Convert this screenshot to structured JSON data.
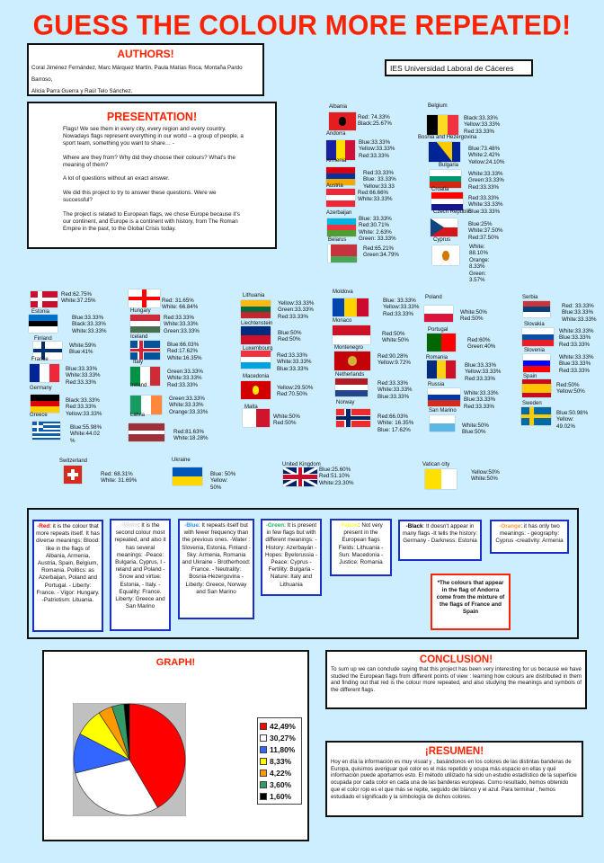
{
  "title": "GUESS THE COLOUR MORE REPEATED!",
  "authors": {
    "heading": "AUTHORS!",
    "lines": [
      "Coral Jiménez Fernández, Marc Márquez Martín, Paula Matías Roca, Montaña Pardo Barroso,",
      "Alicia Parra Guerra y Raúl Telo Sánchez."
    ]
  },
  "school": "IES Universidad Laboral de Cáceres",
  "presentation": {
    "heading": "PRESENTATION!",
    "paragraphs": [
      "Flags! We see them in every city, every region and every country. Nowadays flags represent everything in our world – a group of people, a sport team, something you want to share… -",
      "Where are they from?  Why did they choose their colours? What's the meaning of them?",
      "A lot of questions without an exact answer.",
      "We did this project to try to answer these questions. Were  we successful?",
      "The project is related to European flags, we chose Europe because it's our continent, and Europe is a continent with history, from The Roman Empire in the past, to the Global Crisis today."
    ]
  },
  "countries": [
    {
      "name": "Albania",
      "lines": [
        "Red: 74.33%",
        "Black:25.67%"
      ],
      "flag": {
        "type": "emblem",
        "colors": [
          "#e41e20",
          "#000000"
        ]
      }
    },
    {
      "name": "Andorra",
      "lines": [
        "Blue:33.33%",
        "Yellow:33.33%",
        "Red:33.33%"
      ],
      "flag": {
        "type": "v",
        "colors": [
          "#1a21a0",
          "#fedf00",
          "#d0103a"
        ]
      }
    },
    {
      "name": "Armenia",
      "lines": [
        "Red:33.33%",
        "Blue: 33.33%",
        "Yellow:33.33"
      ],
      "flag": {
        "type": "h",
        "colors": [
          "#d90012",
          "#0033a0",
          "#f2a800"
        ]
      }
    },
    {
      "name": "Austria",
      "lines": [
        "Red:66.66%",
        "White:33.33%"
      ],
      "flag": {
        "type": "h",
        "colors": [
          "#ed2939",
          "#ffffff",
          "#ed2939"
        ]
      }
    },
    {
      "name": "Azerbaijan",
      "lines": [
        "Blue: 33.33%",
        "Red:30.71%",
        "White: 2.63%",
        "Green: 33.33%"
      ],
      "flag": {
        "type": "h",
        "colors": [
          "#00b5e2",
          "#ef3340",
          "#509e2f"
        ]
      }
    },
    {
      "name": "Belarus",
      "lines": [
        "Red:65.21%",
        "Green:34.79%"
      ],
      "flag": {
        "type": "h2",
        "colors": [
          "#c8313e",
          "#4aa657"
        ]
      }
    },
    {
      "name": "Belgium",
      "lines": [
        "Black:33.33%",
        "Yellow:33.33%",
        "Red:33.33%"
      ],
      "flag": {
        "type": "v",
        "colors": [
          "#000000",
          "#fdda24",
          "#ef3340"
        ]
      }
    },
    {
      "name": "Bosnia and Hezergovina",
      "lines": [
        "Blue:73.48%",
        "White:2.42%",
        "Yellow:24.10%"
      ],
      "flag": {
        "type": "bosnia",
        "colors": [
          "#002395",
          "#fecb00"
        ]
      }
    },
    {
      "name": "Bulgaria",
      "lines": [
        "White:33.33%",
        "Green:33.33%",
        "Red:33.33%"
      ],
      "flag": {
        "type": "h",
        "colors": [
          "#ffffff",
          "#00966e",
          "#d62612"
        ]
      }
    },
    {
      "name": "Croatia",
      "lines": [
        "Red:33.33%",
        "White:33.33%",
        "Blue:33.33%"
      ],
      "flag": {
        "type": "h",
        "colors": [
          "#ff0000",
          "#ffffff",
          "#171796"
        ]
      }
    },
    {
      "name": "Czech Republic",
      "lines": [
        "Blue:25%",
        "White:37.50%",
        "Red:37.50%"
      ],
      "flag": {
        "type": "czech",
        "colors": [
          "#ffffff",
          "#d7141a",
          "#11457e"
        ]
      }
    },
    {
      "name": "Cyprus",
      "lines": [
        "White:",
        "88.10%",
        "Orange:",
        "8.33%",
        "Green:",
        "3.57%"
      ],
      "flag": {
        "type": "emblem",
        "colors": [
          "#ffffff",
          "#d57800"
        ]
      }
    },
    {
      "name": "",
      "lines": [
        "Red:62.75%",
        "White:37.25%"
      ],
      "flag": {
        "type": "nordic",
        "colors": [
          "#c8102e",
          "#ffffff"
        ]
      }
    },
    {
      "name": "Estonia",
      "lines": [
        "Blue:33.33%",
        "Black:33.33%",
        "White:33.33%"
      ],
      "flag": {
        "type": "h",
        "colors": [
          "#0072ce",
          "#000000",
          "#ffffff"
        ]
      }
    },
    {
      "name": "Finland",
      "lines": [
        "White:59%",
        "Blue:41%"
      ],
      "flag": {
        "type": "nordic",
        "colors": [
          "#ffffff",
          "#002f6c"
        ]
      }
    },
    {
      "name": "France",
      "lines": [
        "Blue:33.33%",
        "White:33.33%",
        "Red:33.33%"
      ],
      "flag": {
        "type": "v",
        "colors": [
          "#002395",
          "#ffffff",
          "#ed2939"
        ]
      }
    },
    {
      "name": "Germany",
      "lines": [
        "Black:33.33%",
        "Red:33.33%",
        "Yellow:33.33%"
      ],
      "flag": {
        "type": "h",
        "colors": [
          "#000000",
          "#dd0000",
          "#ffce00"
        ]
      }
    },
    {
      "name": "Greece",
      "lines": [
        "Blue:55.98%",
        "White:44.02",
        "%"
      ],
      "flag": {
        "type": "greece",
        "colors": [
          "#0d5eaf",
          "#ffffff"
        ]
      }
    },
    {
      "name": "",
      "lines": [
        "Red: 31.65%",
        "White: 66.84%"
      ],
      "flag": {
        "type": "cross",
        "colors": [
          "#ffffff",
          "#ff0000"
        ]
      }
    },
    {
      "name": "Hungary",
      "lines": [
        "Red:33.33%",
        "White:33.33%",
        "Green:33.33%"
      ],
      "flag": {
        "type": "h",
        "colors": [
          "#ce2939",
          "#ffffff",
          "#477050"
        ]
      }
    },
    {
      "name": "Iceland",
      "lines": [
        "Blue:66.03%",
        "Red:17.62%",
        "White:16.35%"
      ],
      "flag": {
        "type": "nordic2",
        "colors": [
          "#02529c",
          "#ffffff",
          "#dc1e35"
        ]
      }
    },
    {
      "name": "Italy",
      "lines": [
        "Green:33.33%",
        "White:33.33%",
        "Red:33.33%"
      ],
      "flag": {
        "type": "v",
        "colors": [
          "#009246",
          "#ffffff",
          "#ce2b37"
        ]
      }
    },
    {
      "name": "Ireland",
      "lines": [
        "Green:33.33%",
        "White:33.33%",
        "Orange:33.33%"
      ],
      "flag": {
        "type": "v",
        "colors": [
          "#169b62",
          "#ffffff",
          "#ff883e"
        ]
      }
    },
    {
      "name": "Latvia",
      "lines": [
        "Red:81.63%",
        "White:18.28%"
      ],
      "flag": {
        "type": "latvia",
        "colors": [
          "#9e3039",
          "#ffffff"
        ]
      }
    },
    {
      "name": "Lithuania",
      "lines": [
        "Yellow:33.33%",
        "Green:33.33%",
        "Red:33.33%"
      ],
      "flag": {
        "type": "h",
        "colors": [
          "#fdb913",
          "#006a44",
          "#c1272d"
        ]
      }
    },
    {
      "name": "Liechtenstein",
      "lines": [
        "Blue:50%",
        "Red:50%"
      ],
      "flag": {
        "type": "h",
        "colors": [
          "#002b7f",
          "#ce1126"
        ]
      }
    },
    {
      "name": "Luxembourg",
      "lines": [
        "Red:33.33%",
        "White:33.33%",
        "Blue:33.33%"
      ],
      "flag": {
        "type": "h",
        "colors": [
          "#ef3340",
          "#ffffff",
          "#00a3e0"
        ]
      }
    },
    {
      "name": "Macedonia",
      "lines": [
        "Yellow:29.50%",
        "Red:70.50%"
      ],
      "flag": {
        "type": "emblem",
        "colors": [
          "#d20000",
          "#ffe600"
        ]
      }
    },
    {
      "name": "Malta",
      "lines": [
        "White:50%",
        "Red:50%"
      ],
      "flag": {
        "type": "v2",
        "colors": [
          "#ffffff",
          "#cf142b"
        ]
      }
    },
    {
      "name": "Moldova",
      "lines": [
        "Blue: 33.33%",
        "Yellow:33.33%",
        "Red:33.33%"
      ],
      "flag": {
        "type": "v",
        "colors": [
          "#0046ae",
          "#ffd200",
          "#cc092f"
        ]
      }
    },
    {
      "name": "Monaco",
      "lines": [
        "Red:50%",
        "White:50%"
      ],
      "flag": {
        "type": "h",
        "colors": [
          "#ce1126",
          "#ffffff"
        ]
      }
    },
    {
      "name": "Montenegro",
      "lines": [
        "Red:90.28%",
        "Yellow:9.72%"
      ],
      "flag": {
        "type": "emblem",
        "colors": [
          "#c40308",
          "#d4af3a"
        ]
      }
    },
    {
      "name": "Netherlands",
      "lines": [
        "Red:33.33%",
        "White:33.33%",
        "Blue:33.33%"
      ],
      "flag": {
        "type": "h",
        "colors": [
          "#ae1c28",
          "#ffffff",
          "#21468b"
        ]
      }
    },
    {
      "name": "Norway",
      "lines": [
        "Red:66.03%",
        "White: 16.35%",
        "Blue: 17.62%"
      ],
      "flag": {
        "type": "nordic2",
        "colors": [
          "#ef2b2d",
          "#ffffff",
          "#002868"
        ]
      }
    },
    {
      "name": "Poland",
      "lines": [
        "White:50%",
        "Red:50%"
      ],
      "flag": {
        "type": "h",
        "colors": [
          "#ffffff",
          "#dc143c"
        ]
      }
    },
    {
      "name": "Portugal",
      "lines": [
        "Red:60%",
        "Green:40%"
      ],
      "flag": {
        "type": "v2",
        "colors": [
          "#006600",
          "#ff0000"
        ]
      }
    },
    {
      "name": "Romania",
      "lines": [
        "Blue:33.33%",
        "Yellow:33.33%",
        "Red:33.33%"
      ],
      "flag": {
        "type": "v",
        "colors": [
          "#002b7f",
          "#fcd116",
          "#ce1126"
        ]
      }
    },
    {
      "name": "Russia",
      "lines": [
        "White:33.33%",
        "Blue:33.33%",
        "Red:33.33%"
      ],
      "flag": {
        "type": "h",
        "colors": [
          "#ffffff",
          "#0039a6",
          "#d52b1e"
        ]
      }
    },
    {
      "name": "San Marino",
      "lines": [
        "White:50%",
        "Blue:50%"
      ],
      "flag": {
        "type": "h",
        "colors": [
          "#ffffff",
          "#5eb6e4"
        ]
      }
    },
    {
      "name": "Serbia",
      "lines": [
        "Red: 33.33%",
        "Blue:33.33%",
        "White:33.33%"
      ],
      "flag": {
        "type": "h",
        "colors": [
          "#c6363c",
          "#0c4076",
          "#ffffff"
        ]
      }
    },
    {
      "name": "Slovakia",
      "lines": [
        "White:33.33%",
        "Blue:33.33%",
        "Red:33.33%"
      ],
      "flag": {
        "type": "h",
        "colors": [
          "#ffffff",
          "#0b4ea2",
          "#ee1c25"
        ]
      }
    },
    {
      "name": "Slovenia",
      "lines": [
        "White:33.33%",
        "Blue:33.33%",
        "Red:33.33%"
      ],
      "flag": {
        "type": "h",
        "colors": [
          "#ffffff",
          "#0000ff",
          "#ff0000"
        ]
      }
    },
    {
      "name": "Spain",
      "lines": [
        "Red:50%",
        "Yellow:50%"
      ],
      "flag": {
        "type": "spain",
        "colors": [
          "#c60b1e",
          "#ffc400"
        ]
      }
    },
    {
      "name": "Sweden",
      "lines": [
        "Blue:50.98%",
        "Yellow:",
        "49.02%"
      ],
      "flag": {
        "type": "nordic",
        "colors": [
          "#006aa7",
          "#fecc00"
        ]
      }
    },
    {
      "name": "Switzerland",
      "lines": [
        "Red: 68.31%",
        "White: 31.69%"
      ],
      "flag": {
        "type": "swiss",
        "colors": [
          "#d52b1e",
          "#ffffff"
        ]
      }
    },
    {
      "name": "Ukraine",
      "lines": [
        "Blue: 50%",
        "Yellow:",
        "50%"
      ],
      "flag": {
        "type": "h",
        "colors": [
          "#0057b7",
          "#ffd700"
        ]
      }
    },
    {
      "name": "United Kingdom",
      "lines": [
        "Blue:25.60%",
        "Red:51.10%",
        "White:23.30%"
      ],
      "flag": {
        "type": "uk",
        "colors": [
          "#012169",
          "#ffffff",
          "#c8102e"
        ]
      }
    },
    {
      "name": "Vatican city",
      "lines": [
        "Yellow:50%",
        "White:50%"
      ],
      "flag": {
        "type": "v2",
        "colors": [
          "#ffe000",
          "#ffffff"
        ]
      }
    }
  ],
  "meanings": [
    {
      "colour": "-Red",
      "colour_hex": "#ff0000",
      "text": ": it is the colour that more repeats itself. It has diverse meanings: Blood: like in the flags of Albania, Armenia, Austria, Spain, Belgium, Romania. Politics: as Azerbaijan, Poland and Portugal. - Liberty:   France. - Vigor:  Hungary. -Patriotism: Lituania."
    },
    {
      "colour": "-White",
      "colour_hex": "#ffffff",
      "text": ": It is the second colour most repeated, and also it has several meanings: -Peace: Bulgaria, Cyprus, I -reland and Poland -Snow and virtue: Estonia, - Italy. - Equality: France. Liberty: Greece and San Marino"
    },
    {
      "colour": "-Blue",
      "colour_hex": "#1e90ff",
      "text": ": It repeats itself but with fewer frequency than the previous ones. -Water : Slovenia, Estonia, Finland - Sky: Armenia, Romania and Ukraine - Brotherhood: France. - Neutrality: Bosnia-Hezergovina - Liberty: Greece, Norway and San Marino"
    },
    {
      "colour": "-Green",
      "colour_hex": "#22b060",
      "text": ": It is present in few flags but with different meanings: -History: Azerbayán - Hopes: Byelorussia - Peace: Cyprus - Fertility: Bulgaria - Nature: Italy and Lithuania"
    },
    {
      "colour": "-Yellow",
      "colour_hex": "#ffff33",
      "text": ":  Not very present in the European flags Fields: Lithuania -Sun: Macedonia -Justice: Romania"
    },
    {
      "colour": "-Black",
      "colour_hex": "#000000",
      "text": ":  It doesn't appear in many flags -It tells the history: Germany - Darkness: Estonia"
    },
    {
      "colour": "-Orange",
      "colour_hex": "#ff9933",
      "text": ": it has only two meanings: - geography: Cyprus -creativity: Armenia"
    }
  ],
  "andorra_note": "*The colours that appear in the flag of Andorra come from the mixture of the flags of France and Spain",
  "graph": {
    "heading": "GRAPH!"
  },
  "chart_data": {
    "type": "pie",
    "title": "GRAPH!",
    "legend_position": "right",
    "values": [
      42.49,
      30.27,
      11.8,
      8.33,
      4.22,
      3.6,
      1.6
    ],
    "labels": [
      "42,49%",
      "30,27%",
      "11,80%",
      "8,33%",
      "4,22%",
      "3,60%",
      "1,60%"
    ],
    "colors": [
      "#ff0000",
      "#ffffff",
      "#3366ff",
      "#ffff00",
      "#ff9900",
      "#339966",
      "#000000"
    ]
  },
  "conclusion": {
    "heading": "CONCLUSION!",
    "text": "To sum up  we can  conclude saying that  this project has been very interesting for us because we have studied the European flags from different points of view : learning how colours are distributed in them and finding out that red is the colour more repeated, and also studying the meanings and symbols of the different flags."
  },
  "resumen": {
    "heading": "¡RESUMEN!",
    "text": "Hoy en día la información es muy visual y , basándonos en los colores de las distintas banderas de Europa, quisimos averiguar  qué color es el más repetido y ocupa  más espacio en ellas y  qué información puede aportarnos esto. El método utilizado ha sido un estudio estadístico de la superficie ocupada por cada color en cada una de las banderas europeas. Como resultado, hemos obtenido que el color rojo es el que más se repite, seguido del blanco y el azul. Para terminar , hemos estudiado el significado y la simbología de dichos colores."
  }
}
